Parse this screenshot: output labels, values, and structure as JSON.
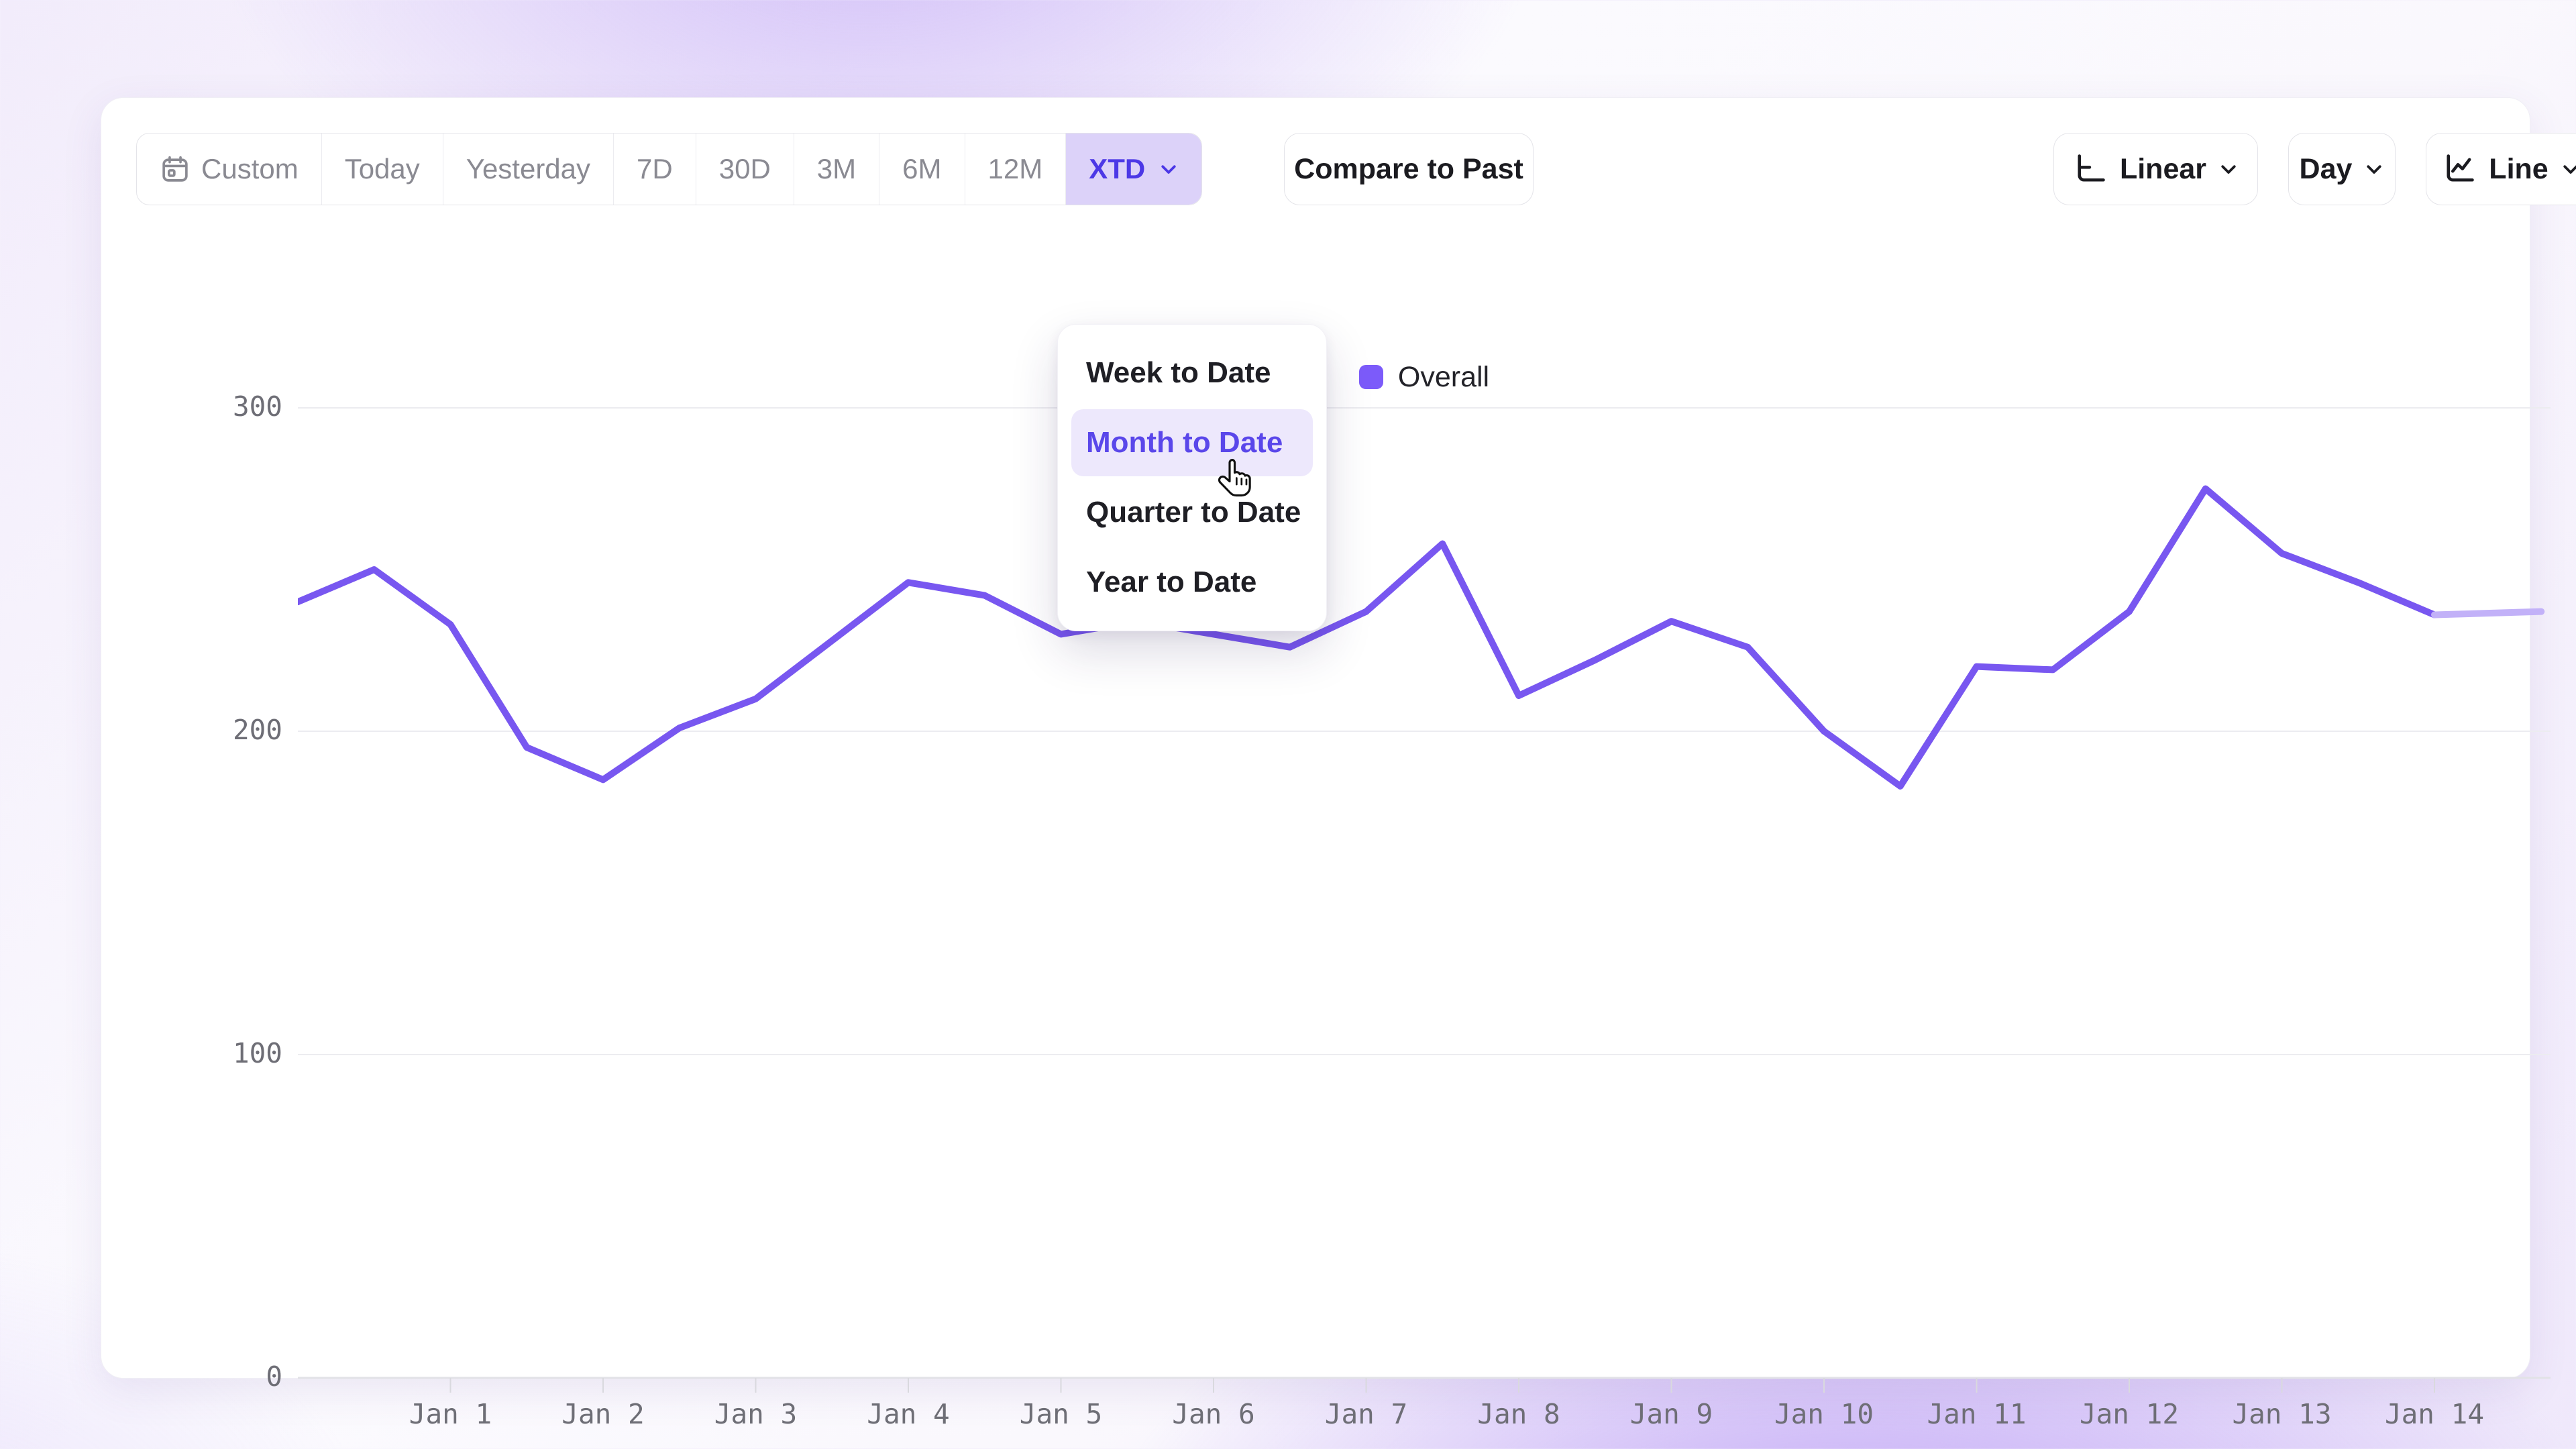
{
  "toolbar": {
    "date_ranges": {
      "items": [
        {
          "label": "Custom",
          "icon": "calendar-icon"
        },
        {
          "label": "Today"
        },
        {
          "label": "Yesterday"
        },
        {
          "label": "7D"
        },
        {
          "label": "30D"
        },
        {
          "label": "3M"
        },
        {
          "label": "6M"
        },
        {
          "label": "12M"
        }
      ],
      "active": {
        "label": "XTD",
        "icon": "chevron-down-icon"
      }
    },
    "compare_label": "Compare to Past",
    "scale_button": {
      "label": "Linear",
      "icon": "axis-icon"
    },
    "granularity_button": {
      "label": "Day"
    },
    "chart_type_button": {
      "label": "Line",
      "icon": "line-chart-icon"
    }
  },
  "dropdown": {
    "items": [
      {
        "label": "Week to Date",
        "active": false
      },
      {
        "label": "Month to Date",
        "active": true
      },
      {
        "label": "Quarter to Date",
        "active": false
      },
      {
        "label": "Year to Date",
        "active": false
      }
    ]
  },
  "legend": {
    "label": "Overall",
    "color": "#7C5BFA"
  },
  "chart_data": {
    "type": "line",
    "title": "",
    "xlabel": "",
    "ylabel": "",
    "legend_position": "top-center",
    "grid": "horizontal-only",
    "y_ticks": [
      0,
      100,
      200,
      300
    ],
    "ylim": [
      0,
      310
    ],
    "xlim_days": [
      0,
      14.76
    ],
    "x_ticks": [
      {
        "day": 1,
        "label": "Jan 1"
      },
      {
        "day": 2,
        "label": "Jan 2"
      },
      {
        "day": 3,
        "label": "Jan 3"
      },
      {
        "day": 4,
        "label": "Jan 4"
      },
      {
        "day": 5,
        "label": "Jan 5"
      },
      {
        "day": 6,
        "label": "Jan 6"
      },
      {
        "day": 7,
        "label": "Jan 7"
      },
      {
        "day": 8,
        "label": "Jan 8"
      },
      {
        "day": 9,
        "label": "Jan 9"
      },
      {
        "day": 10,
        "label": "Jan 10"
      },
      {
        "day": 11,
        "label": "Jan 11"
      },
      {
        "day": 12,
        "label": "Jan 12"
      },
      {
        "day": 13,
        "label": "Jan 13"
      },
      {
        "day": 14,
        "label": "Jan 14"
      }
    ],
    "series": [
      {
        "name": "Overall",
        "color": "#7857F0",
        "points": [
          [
            0,
            240
          ],
          [
            0.5,
            250
          ],
          [
            1,
            233
          ],
          [
            1.5,
            195
          ],
          [
            2,
            185
          ],
          [
            2.5,
            201
          ],
          [
            3,
            210
          ],
          [
            3.5,
            228
          ],
          [
            4,
            246
          ],
          [
            4.5,
            242
          ],
          [
            5,
            230
          ],
          [
            5.5,
            234
          ],
          [
            6,
            230
          ],
          [
            6.5,
            226
          ],
          [
            7,
            237
          ],
          [
            7.5,
            258
          ],
          [
            8,
            211
          ],
          [
            8.5,
            222
          ],
          [
            9,
            234
          ],
          [
            9.5,
            226
          ],
          [
            10,
            200
          ],
          [
            10.5,
            183
          ],
          [
            11,
            220
          ],
          [
            11.5,
            219
          ],
          [
            12,
            237
          ],
          [
            12.5,
            275
          ],
          [
            13,
            255
          ],
          [
            13.5,
            246
          ],
          [
            14,
            236
          ]
        ],
        "faded_tail_points": [
          [
            14,
            236
          ],
          [
            14.7,
            237
          ]
        ],
        "faded_color": "#C2B1F8"
      }
    ],
    "colors": {
      "grid": "#ECECF0",
      "axis": "#E2E2E7",
      "tick": "#D9D9DE",
      "tick_label": "#6E6E76"
    }
  }
}
